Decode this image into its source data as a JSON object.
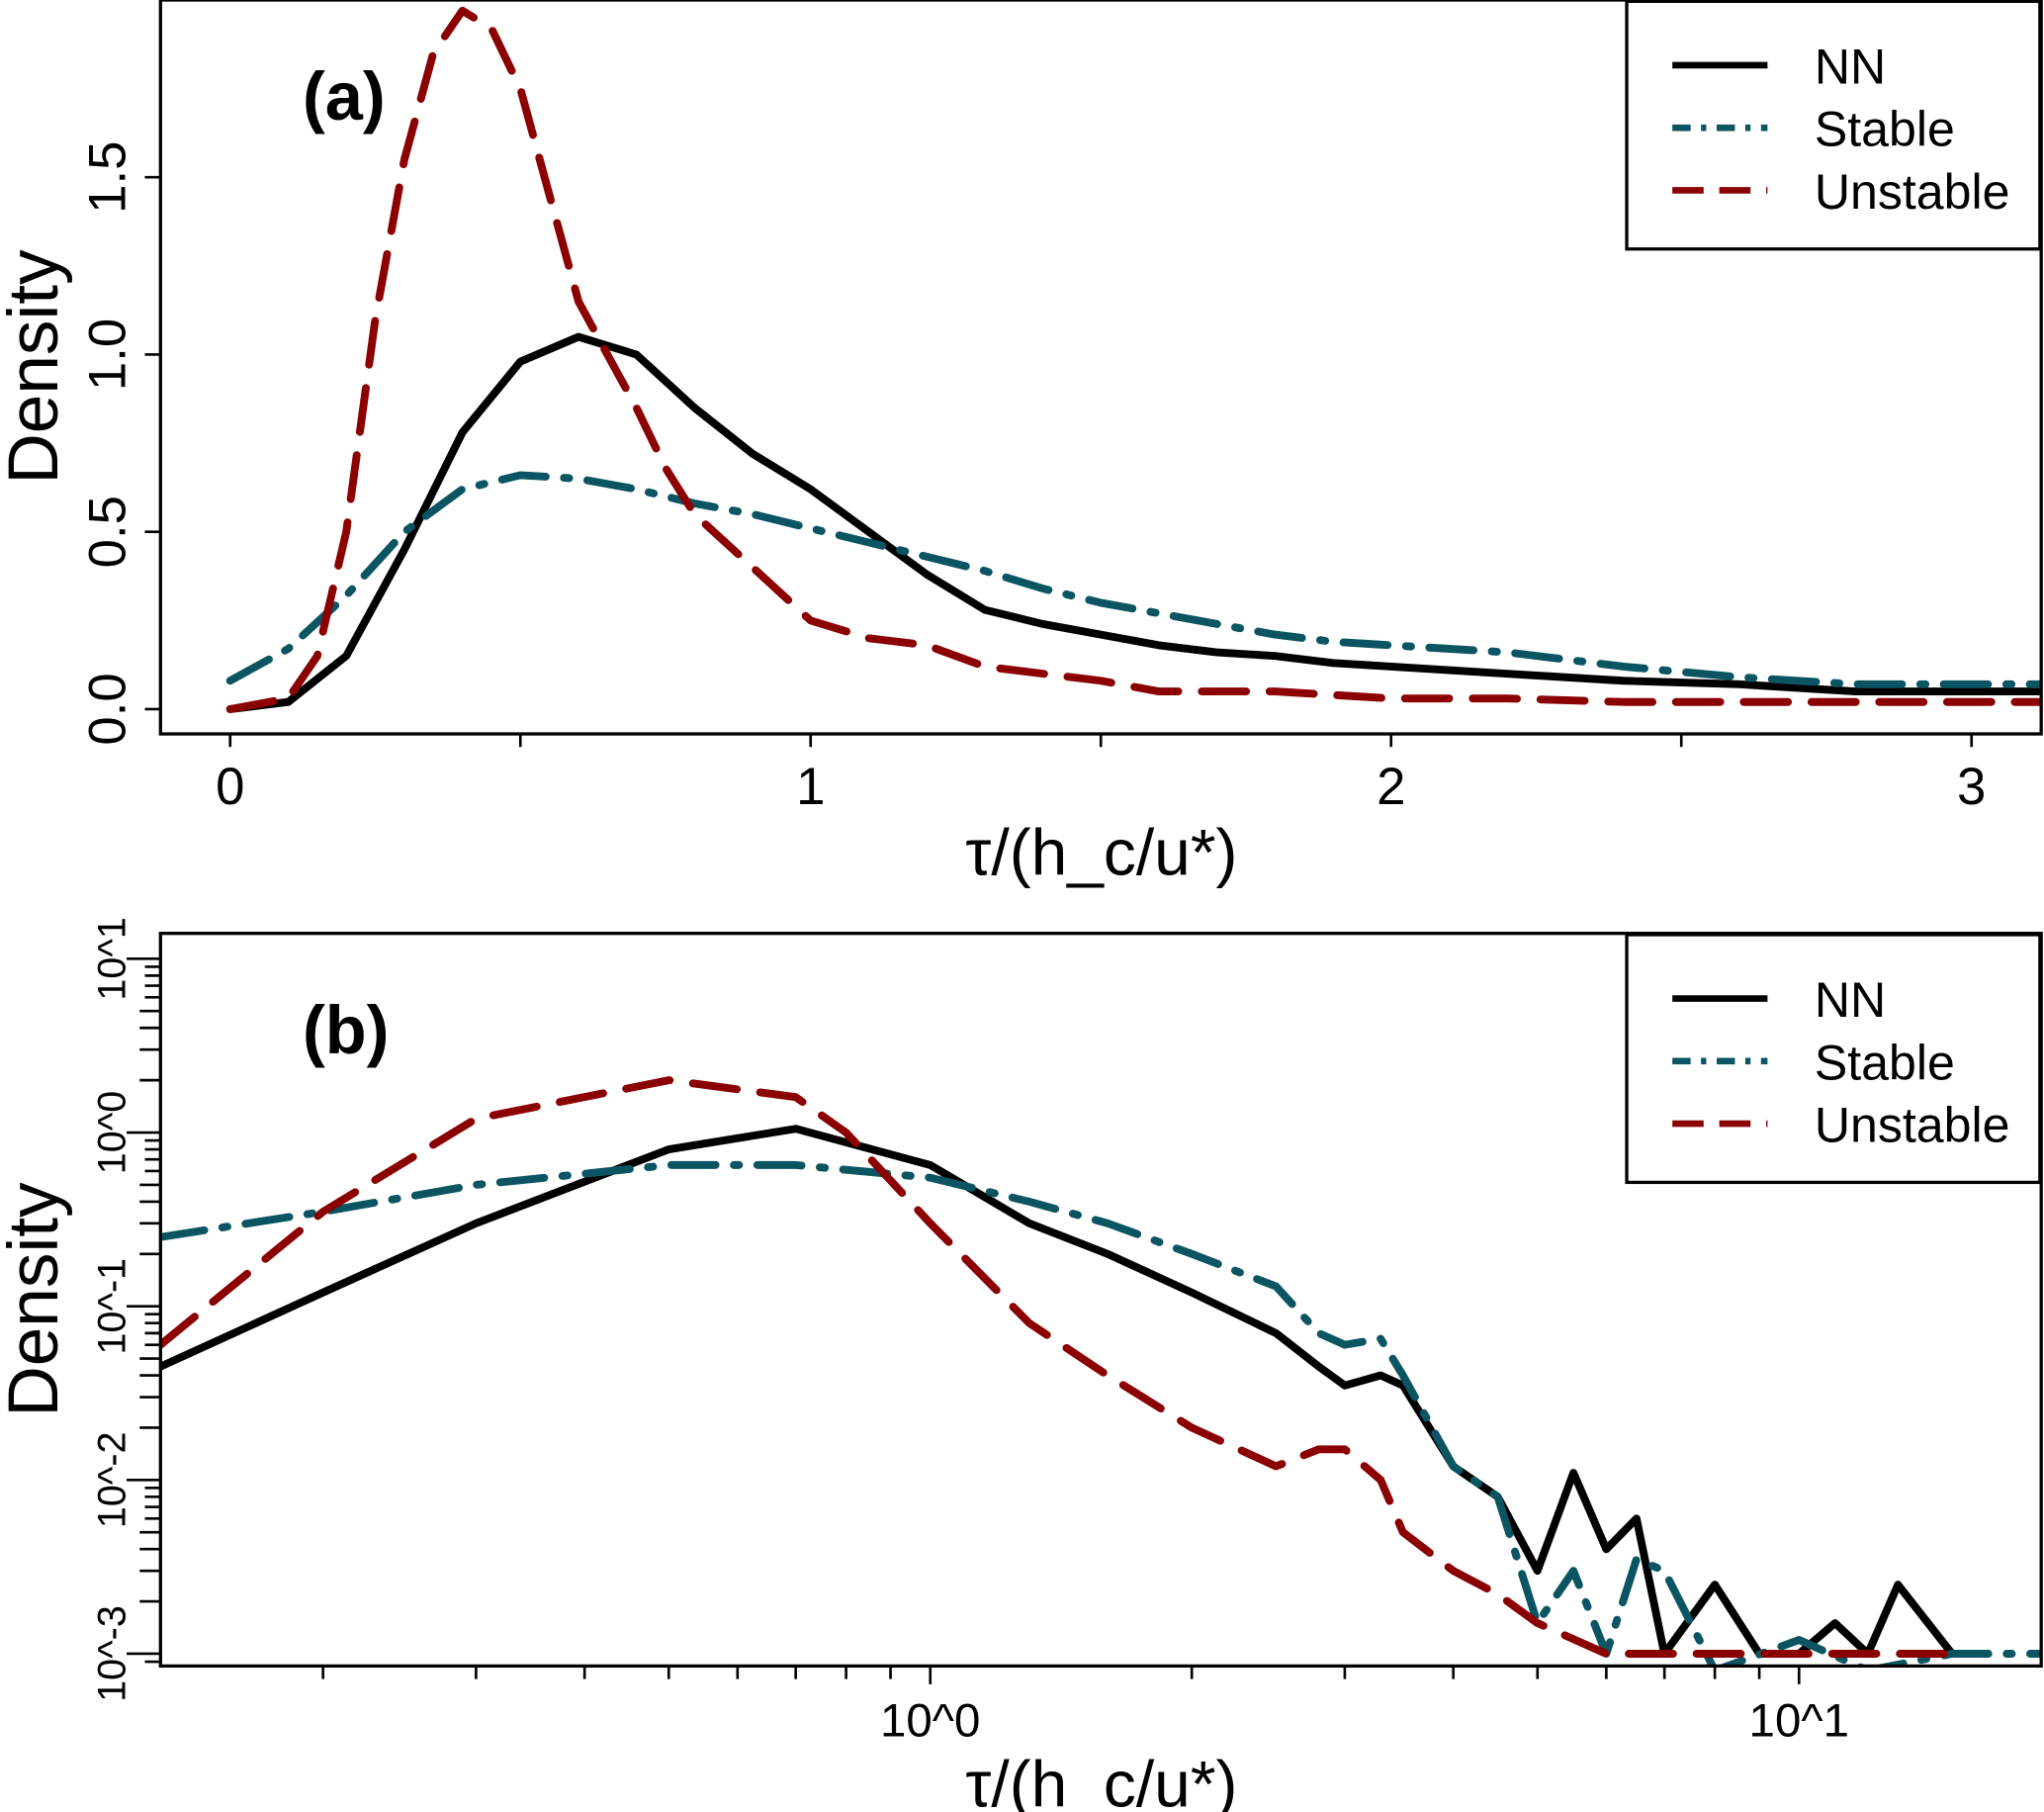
{
  "colors": {
    "NN": "#000000",
    "Stable": "#0b5563",
    "Unstable": "#8b0000"
  },
  "chart_data": [
    {
      "type": "line",
      "panel_label": "(a)",
      "xlabel": "τ/(h_c/u*)",
      "ylabel": "Density",
      "xlim": [
        -0.12,
        3.12
      ],
      "ylim": [
        -0.07,
        2.0
      ],
      "x_scale": "linear",
      "y_scale": "linear",
      "x_ticks": [
        0,
        1,
        2,
        3
      ],
      "x_tick_labels": [
        "0",
        "1",
        "2",
        "3"
      ],
      "y_ticks": [
        0,
        0.5,
        1.0,
        1.5
      ],
      "y_tick_labels": [
        "0.0",
        "0.5",
        "1.0",
        "1.5"
      ],
      "legend_position": "top-right",
      "grid": false,
      "series": [
        {
          "name": "NN",
          "style": "solid",
          "x": [
            0,
            0.1,
            0.2,
            0.3,
            0.4,
            0.5,
            0.6,
            0.7,
            0.8,
            0.9,
            1.0,
            1.1,
            1.2,
            1.3,
            1.4,
            1.5,
            1.6,
            1.7,
            1.8,
            1.9,
            2.0,
            2.2,
            2.4,
            2.6,
            2.8,
            3.0,
            3.12
          ],
          "y": [
            0,
            0.02,
            0.15,
            0.45,
            0.78,
            0.98,
            1.05,
            1.0,
            0.85,
            0.72,
            0.62,
            0.5,
            0.38,
            0.28,
            0.24,
            0.21,
            0.18,
            0.16,
            0.15,
            0.13,
            0.12,
            0.1,
            0.08,
            0.07,
            0.05,
            0.05,
            0.05
          ]
        },
        {
          "name": "Stable",
          "style": "dashdot",
          "x": [
            0,
            0.1,
            0.2,
            0.3,
            0.4,
            0.5,
            0.6,
            0.7,
            0.8,
            0.9,
            1.0,
            1.1,
            1.2,
            1.3,
            1.4,
            1.5,
            1.6,
            1.7,
            1.8,
            1.9,
            2.0,
            2.2,
            2.4,
            2.6,
            2.8,
            3.0,
            3.12
          ],
          "y": [
            0.08,
            0.17,
            0.32,
            0.5,
            0.62,
            0.66,
            0.65,
            0.62,
            0.58,
            0.55,
            0.51,
            0.47,
            0.43,
            0.39,
            0.34,
            0.3,
            0.27,
            0.24,
            0.21,
            0.19,
            0.18,
            0.16,
            0.12,
            0.09,
            0.07,
            0.07,
            0.07
          ]
        },
        {
          "name": "Unstable",
          "style": "dashed",
          "x": [
            0,
            0.1,
            0.15,
            0.2,
            0.25,
            0.3,
            0.35,
            0.4,
            0.45,
            0.5,
            0.55,
            0.6,
            0.65,
            0.7,
            0.75,
            0.8,
            0.9,
            1.0,
            1.1,
            1.2,
            1.3,
            1.4,
            1.5,
            1.6,
            1.8,
            2.0,
            2.2,
            2.4,
            2.6,
            2.8,
            3.0,
            3.12
          ],
          "y": [
            0,
            0.03,
            0.15,
            0.5,
            1.1,
            1.55,
            1.85,
            1.97,
            1.92,
            1.75,
            1.45,
            1.15,
            1.0,
            0.85,
            0.68,
            0.55,
            0.4,
            0.25,
            0.2,
            0.18,
            0.12,
            0.1,
            0.08,
            0.05,
            0.05,
            0.03,
            0.03,
            0.02,
            0.02,
            0.02,
            0.02,
            0.02
          ]
        }
      ]
    },
    {
      "type": "line",
      "panel_label": "(b)",
      "xlabel": "τ/(h_c/u*)",
      "ylabel": "Density",
      "xlim": [
        0.13,
        19
      ],
      "ylim": [
        0.00085,
        14
      ],
      "x_scale": "log",
      "y_scale": "log",
      "x_ticks": [
        1,
        10
      ],
      "x_tick_labels": [
        "10^0",
        "10^1"
      ],
      "y_ticks": [
        0.001,
        0.01,
        0.1,
        1,
        10
      ],
      "y_tick_labels": [
        "10^-3",
        "10^-2",
        "10^-1",
        "10^0",
        "10^1"
      ],
      "legend_position": "top-right",
      "grid": false,
      "series": [
        {
          "name": "NN",
          "style": "solid",
          "x": [
            0.13,
            0.2,
            0.3,
            0.5,
            0.7,
            1.0,
            1.3,
            1.6,
            2.0,
            2.5,
            2.8,
            3.0,
            3.3,
            3.5,
            4.0,
            4.5,
            5.0,
            5.5,
            6.0,
            6.5,
            7.0,
            8.0,
            9.0,
            10,
            11,
            12,
            13,
            15
          ],
          "y": [
            0.045,
            0.12,
            0.3,
            0.8,
            1.05,
            0.65,
            0.3,
            0.2,
            0.12,
            0.07,
            0.045,
            0.035,
            0.04,
            0.035,
            0.012,
            0.008,
            0.003,
            0.011,
            0.004,
            0.006,
            0.001,
            0.0025,
            0.001,
            0.001,
            0.0015,
            0.001,
            0.0025,
            0.001
          ]
        },
        {
          "name": "Stable",
          "style": "dashdot",
          "x": [
            0.13,
            0.2,
            0.3,
            0.5,
            0.7,
            1.0,
            1.3,
            1.6,
            2.0,
            2.5,
            2.8,
            3.0,
            3.3,
            3.5,
            4.0,
            4.5,
            5.0,
            5.5,
            6.0,
            6.5,
            7.0,
            8.0,
            10,
            12,
            15,
            19
          ],
          "y": [
            0.25,
            0.35,
            0.5,
            0.65,
            0.65,
            0.55,
            0.4,
            0.3,
            0.2,
            0.13,
            0.07,
            0.06,
            0.065,
            0.04,
            0.012,
            0.008,
            0.0015,
            0.003,
            0.001,
            0.0035,
            0.003,
            0.0008,
            0.0012,
            0.0008,
            0.001,
            0.001
          ]
        },
        {
          "name": "Unstable",
          "style": "dashed",
          "x": [
            0.13,
            0.2,
            0.3,
            0.5,
            0.7,
            0.8,
            1.0,
            1.3,
            1.6,
            2.0,
            2.5,
            2.8,
            3.0,
            3.3,
            3.5,
            4.0,
            4.5,
            5.0,
            6.0,
            8.0,
            10,
            12,
            15
          ],
          "y": [
            0.06,
            0.35,
            1.2,
            2.0,
            1.6,
            1.0,
            0.3,
            0.08,
            0.04,
            0.02,
            0.012,
            0.015,
            0.015,
            0.01,
            0.005,
            0.003,
            0.0022,
            0.0015,
            0.001,
            0.001,
            0.001,
            0.001,
            0.001
          ]
        }
      ]
    }
  ]
}
